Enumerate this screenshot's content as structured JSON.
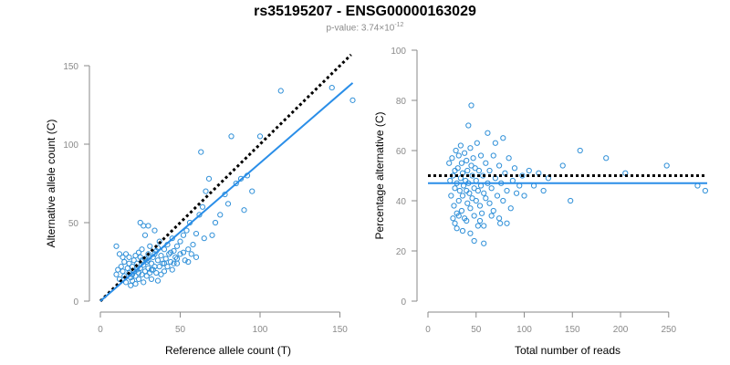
{
  "title": "rs35195207 - ENSG00000163029",
  "subtitle": {
    "prefix": "p-value: 3.74×10",
    "exponent": "-12"
  },
  "colors": {
    "points": "#3090d8",
    "fit_line": "#2a8ee8",
    "ref_line": "#000000",
    "axis": "#8a8a8a"
  },
  "chart_data": [
    {
      "type": "scatter",
      "xlabel": "Reference allele count (T)",
      "ylabel": "Alternative allele count (C)",
      "xlim": [
        0,
        160
      ],
      "ylim": [
        0,
        150
      ],
      "xticks": [
        0,
        50,
        100,
        150
      ],
      "yticks": [
        0,
        50,
        100,
        150
      ],
      "grid": false,
      "reference_line": {
        "style": "dotted",
        "slope": 1,
        "intercept": 0,
        "x_range": [
          0,
          157
        ]
      },
      "fit_line": {
        "style": "solid",
        "slope": 0.88,
        "intercept": 0,
        "x_range": [
          0,
          158
        ]
      },
      "points": [
        [
          10,
          35
        ],
        [
          12,
          30
        ],
        [
          10,
          17
        ],
        [
          11,
          20
        ],
        [
          12,
          14
        ],
        [
          13,
          22
        ],
        [
          14,
          19
        ],
        [
          15,
          16
        ],
        [
          15,
          25
        ],
        [
          16,
          12
        ],
        [
          17,
          21
        ],
        [
          18,
          18
        ],
        [
          18,
          28
        ],
        [
          19,
          15
        ],
        [
          19,
          10
        ],
        [
          20,
          22
        ],
        [
          20,
          13
        ],
        [
          21,
          19
        ],
        [
          21,
          26
        ],
        [
          22,
          16
        ],
        [
          22,
          11
        ],
        [
          23,
          24
        ],
        [
          23,
          20
        ],
        [
          24,
          18
        ],
        [
          24,
          14
        ],
        [
          25,
          28
        ],
        [
          25,
          21
        ],
        [
          26,
          33
        ],
        [
          26,
          17
        ],
        [
          27,
          23
        ],
        [
          27,
          12
        ],
        [
          28,
          42
        ],
        [
          28,
          19
        ],
        [
          29,
          25
        ],
        [
          29,
          16
        ],
        [
          30,
          30
        ],
        [
          30,
          21
        ],
        [
          31,
          18
        ],
        [
          31,
          35
        ],
        [
          32,
          24
        ],
        [
          32,
          14
        ],
        [
          33,
          28
        ],
        [
          33,
          20
        ],
        [
          34,
          45
        ],
        [
          34,
          22
        ],
        [
          35,
          18
        ],
        [
          35,
          32
        ],
        [
          36,
          26
        ],
        [
          36,
          13
        ],
        [
          37,
          38
        ],
        [
          37,
          22
        ],
        [
          38,
          29
        ],
        [
          39,
          24
        ],
        [
          40,
          33
        ],
        [
          40,
          19
        ],
        [
          41,
          27
        ],
        [
          42,
          36
        ],
        [
          42,
          22
        ],
        [
          43,
          30
        ],
        [
          44,
          25
        ],
        [
          45,
          40
        ],
        [
          45,
          20
        ],
        [
          46,
          32
        ],
        [
          47,
          28
        ],
        [
          48,
          35
        ],
        [
          48,
          24
        ],
        [
          50,
          38
        ],
        [
          50,
          30
        ],
        [
          52,
          42
        ],
        [
          53,
          26
        ],
        [
          54,
          45
        ],
        [
          55,
          33
        ],
        [
          56,
          50
        ],
        [
          57,
          30
        ],
        [
          58,
          36
        ],
        [
          60,
          28
        ],
        [
          60,
          43
        ],
        [
          62,
          55
        ],
        [
          63,
          95
        ],
        [
          64,
          60
        ],
        [
          65,
          40
        ],
        [
          66,
          70
        ],
        [
          68,
          78
        ],
        [
          70,
          42
        ],
        [
          72,
          50
        ],
        [
          75,
          55
        ],
        [
          78,
          68
        ],
        [
          80,
          62
        ],
        [
          82,
          105
        ],
        [
          85,
          75
        ],
        [
          88,
          78
        ],
        [
          90,
          58
        ],
        [
          92,
          80
        ],
        [
          95,
          70
        ],
        [
          100,
          105
        ],
        [
          113,
          134
        ],
        [
          145,
          136
        ],
        [
          158,
          128
        ],
        [
          25,
          50
        ],
        [
          27,
          48
        ],
        [
          30,
          48
        ],
        [
          14,
          28
        ],
        [
          16,
          30
        ],
        [
          18,
          24
        ],
        [
          20,
          17
        ],
        [
          22,
          29
        ],
        [
          24,
          31
        ],
        [
          26,
          26
        ],
        [
          28,
          27
        ],
        [
          30,
          26
        ],
        [
          32,
          20
        ],
        [
          34,
          30
        ],
        [
          36,
          34
        ],
        [
          38,
          17
        ],
        [
          40,
          24
        ],
        [
          44,
          31
        ],
        [
          46,
          24
        ],
        [
          48,
          27
        ],
        [
          52,
          31
        ],
        [
          55,
          25
        ]
      ]
    },
    {
      "type": "scatter",
      "xlabel": "Total number of reads",
      "ylabel": "Percentage alternative (C)",
      "xlim": [
        0,
        290
      ],
      "ylim": [
        0,
        100
      ],
      "xticks": [
        0,
        50,
        100,
        150,
        200,
        250
      ],
      "yticks": [
        0,
        20,
        40,
        60,
        80,
        100
      ],
      "grid": false,
      "reference_line": {
        "style": "dotted",
        "y": 50,
        "x_range": [
          0,
          290
        ]
      },
      "fit_line": {
        "style": "solid",
        "y": 47,
        "x_range": [
          0,
          290
        ]
      },
      "points": [
        [
          22,
          55
        ],
        [
          23,
          48
        ],
        [
          24,
          42
        ],
        [
          25,
          57
        ],
        [
          26,
          50
        ],
        [
          27,
          38
        ],
        [
          28,
          45
        ],
        [
          28,
          52
        ],
        [
          29,
          60
        ],
        [
          30,
          35
        ],
        [
          30,
          47
        ],
        [
          31,
          53
        ],
        [
          32,
          40
        ],
        [
          32,
          58
        ],
        [
          33,
          44
        ],
        [
          34,
          62
        ],
        [
          34,
          49
        ],
        [
          35,
          36
        ],
        [
          35,
          55
        ],
        [
          36,
          42
        ],
        [
          36,
          51
        ],
        [
          37,
          46
        ],
        [
          38,
          59
        ],
        [
          38,
          33
        ],
        [
          39,
          48
        ],
        [
          40,
          44
        ],
        [
          40,
          56
        ],
        [
          41,
          39
        ],
        [
          41,
          52
        ],
        [
          42,
          70
        ],
        [
          42,
          47
        ],
        [
          43,
          43
        ],
        [
          44,
          61
        ],
        [
          44,
          37
        ],
        [
          45,
          54
        ],
        [
          45,
          78
        ],
        [
          46,
          50
        ],
        [
          46,
          41
        ],
        [
          47,
          57
        ],
        [
          48,
          45
        ],
        [
          48,
          24
        ],
        [
          49,
          53
        ],
        [
          50,
          40
        ],
        [
          50,
          48
        ],
        [
          51,
          63
        ],
        [
          52,
          44
        ],
        [
          52,
          30
        ],
        [
          53,
          52
        ],
        [
          54,
          38
        ],
        [
          55,
          46
        ],
        [
          55,
          58
        ],
        [
          56,
          35
        ],
        [
          57,
          50
        ],
        [
          58,
          43
        ],
        [
          58,
          23
        ],
        [
          60,
          55
        ],
        [
          60,
          41
        ],
        [
          62,
          47
        ],
        [
          62,
          67
        ],
        [
          64,
          39
        ],
        [
          64,
          52
        ],
        [
          66,
          45
        ],
        [
          68,
          58
        ],
        [
          68,
          36
        ],
        [
          70,
          49
        ],
        [
          70,
          63
        ],
        [
          72,
          42
        ],
        [
          74,
          54
        ],
        [
          75,
          31
        ],
        [
          76,
          47
        ],
        [
          78,
          65
        ],
        [
          78,
          40
        ],
        [
          80,
          51
        ],
        [
          82,
          44
        ],
        [
          84,
          57
        ],
        [
          86,
          37
        ],
        [
          88,
          48
        ],
        [
          90,
          53
        ],
        [
          92,
          43
        ],
        [
          95,
          46
        ],
        [
          98,
          50
        ],
        [
          100,
          42
        ],
        [
          105,
          52
        ],
        [
          110,
          46
        ],
        [
          115,
          51
        ],
        [
          120,
          44
        ],
        [
          125,
          49
        ],
        [
          140,
          54
        ],
        [
          148,
          40
        ],
        [
          158,
          60
        ],
        [
          185,
          57
        ],
        [
          205,
          51
        ],
        [
          248,
          54
        ],
        [
          280,
          46
        ],
        [
          288,
          44
        ],
        [
          26,
          33
        ],
        [
          28,
          31
        ],
        [
          30,
          29
        ],
        [
          32,
          34
        ],
        [
          36,
          28
        ],
        [
          40,
          32
        ],
        [
          44,
          27
        ],
        [
          48,
          34
        ],
        [
          54,
          32
        ],
        [
          58,
          30
        ],
        [
          66,
          34
        ],
        [
          74,
          33
        ],
        [
          82,
          31
        ]
      ]
    }
  ]
}
